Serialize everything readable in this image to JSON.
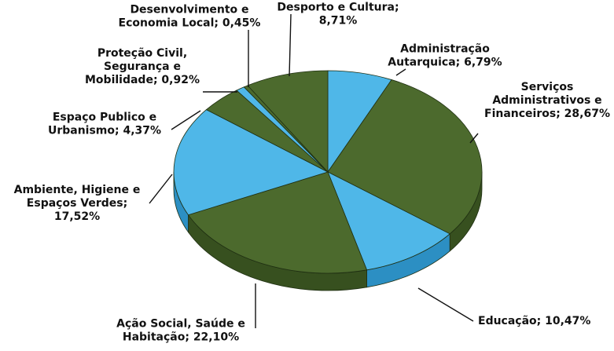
{
  "chart_data": {
    "type": "pie",
    "style": "3d-pie",
    "colors": {
      "green_top": "#4c6a2d",
      "green_side": "#37501f",
      "blue_top": "#4fb7e8",
      "blue_side": "#2c8fc3",
      "edge": "#1f2f12"
    },
    "slices": [
      {
        "label_lines": [
          "Administração",
          "Autarquica; 6,79%"
        ],
        "value": 6.79,
        "color": "blue"
      },
      {
        "label_lines": [
          "Serviços",
          "Administrativos e",
          "Financeiros; 28,67%"
        ],
        "value": 28.67,
        "color": "green"
      },
      {
        "label_lines": [
          "Educação; 10,47%"
        ],
        "value": 10.47,
        "color": "blue"
      },
      {
        "label_lines": [
          "Ação Social, Saúde e",
          "Habitação; 22,10%"
        ],
        "value": 22.1,
        "color": "green"
      },
      {
        "label_lines": [
          "Ambiente, Higiene e",
          "Espaços Verdes;",
          "17,52%"
        ],
        "value": 17.52,
        "color": "blue"
      },
      {
        "label_lines": [
          "Espaço Publico e",
          "Urbanismo; 4,37%"
        ],
        "value": 4.37,
        "color": "green"
      },
      {
        "label_lines": [
          "Proteção Civil,",
          "Segurança e",
          "Mobilidade; 0,92%"
        ],
        "value": 0.92,
        "color": "blue"
      },
      {
        "label_lines": [
          "Desenvolvimento e",
          "Economia Local; 0,45%"
        ],
        "value": 0.45,
        "color": "green"
      },
      {
        "label_lines": [
          "Desporto e Cultura;",
          "8,71%"
        ],
        "value": 8.71,
        "color": "green"
      }
    ]
  }
}
